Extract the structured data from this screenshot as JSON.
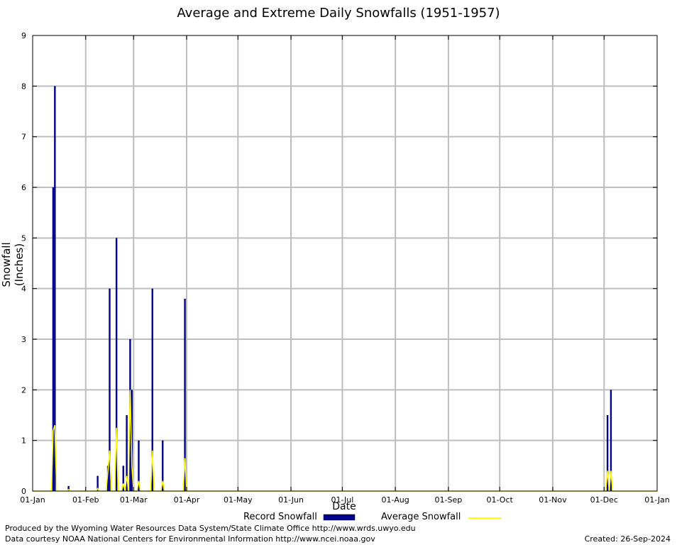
{
  "chart_data": {
    "type": "bar",
    "title": "Average and Extreme Daily Snowfalls (1951-1957)",
    "xlabel": "Date",
    "ylabel": "Snowfall (Inches)",
    "ylim": [
      0,
      9
    ],
    "yticks": [
      "0",
      "1",
      "2",
      "3",
      "4",
      "5",
      "6",
      "7",
      "8",
      "9"
    ],
    "xticks": [
      "01-Jan",
      "01-Feb",
      "01-Mar",
      "01-Apr",
      "01-May",
      "01-Jun",
      "01-Jul",
      "01-Aug",
      "01-Sep",
      "01-Oct",
      "01-Nov",
      "01-Dec",
      "01-Jan"
    ],
    "x_days": [
      0,
      31,
      59,
      90,
      120,
      151,
      181,
      212,
      243,
      273,
      304,
      334,
      365
    ],
    "grid": true,
    "series": [
      {
        "name": "Record Snowfall",
        "color": "#00008b",
        "points": [
          [
            12,
            6.0
          ],
          [
            13,
            8.0
          ],
          [
            21,
            0.1
          ],
          [
            38,
            0.3
          ],
          [
            44,
            0.5
          ],
          [
            45,
            4.0
          ],
          [
            49,
            5.0
          ],
          [
            53,
            0.5
          ],
          [
            55,
            1.5
          ],
          [
            57,
            3.0
          ],
          [
            58,
            2.0
          ],
          [
            62,
            1.0
          ],
          [
            70,
            4.0
          ],
          [
            76,
            1.0
          ],
          [
            89,
            3.8
          ],
          [
            336,
            1.5
          ],
          [
            338,
            2.0
          ]
        ]
      },
      {
        "name": "Average Snowfall",
        "color": "#ffff00",
        "points": [
          [
            0,
            0
          ],
          [
            11,
            0
          ],
          [
            12,
            1.2
          ],
          [
            13,
            1.3
          ],
          [
            14,
            0
          ],
          [
            20,
            0
          ],
          [
            21,
            0.03
          ],
          [
            22,
            0
          ],
          [
            37,
            0
          ],
          [
            38,
            0.05
          ],
          [
            39,
            0
          ],
          [
            43,
            0
          ],
          [
            44,
            0.4
          ],
          [
            45,
            0.8
          ],
          [
            46,
            0
          ],
          [
            48,
            0
          ],
          [
            49,
            1.25
          ],
          [
            50,
            0
          ],
          [
            52,
            0
          ],
          [
            53,
            0.15
          ],
          [
            54,
            0
          ],
          [
            55,
            0.3
          ],
          [
            56,
            0
          ],
          [
            57,
            2.0
          ],
          [
            58,
            0.5
          ],
          [
            59,
            0
          ],
          [
            61,
            0
          ],
          [
            62,
            0.2
          ],
          [
            63,
            0
          ],
          [
            69,
            0
          ],
          [
            70,
            0.8
          ],
          [
            71,
            0
          ],
          [
            75,
            0
          ],
          [
            76,
            0.2
          ],
          [
            77,
            0
          ],
          [
            88,
            0
          ],
          [
            89,
            0.65
          ],
          [
            90,
            0
          ],
          [
            335,
            0
          ],
          [
            336,
            0.4
          ],
          [
            337,
            0
          ],
          [
            338,
            0.4
          ],
          [
            339,
            0
          ],
          [
            365,
            0
          ]
        ]
      }
    ]
  },
  "footer": {
    "left_line1": "Produced by the Wyoming Water Resources Data System/State Climate Office http://www.wrds.uwyo.edu",
    "left_line2": "Data courtesy NOAA National Centers for Environmental Information http://www.ncei.noaa.gov",
    "created": "Created:  26-Sep-2024"
  }
}
